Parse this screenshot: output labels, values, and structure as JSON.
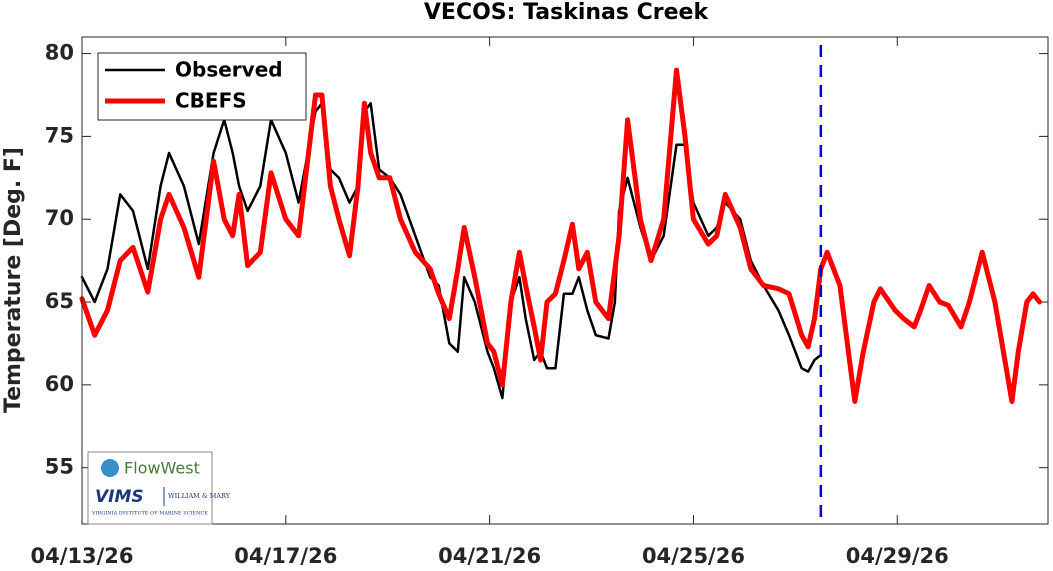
{
  "chart_data": {
    "type": "line",
    "title": "VECOS: Taskinas Creek",
    "y_label": "Temperature [Deg. F]",
    "x": [
      "2026-04-13T00:00",
      "2026-04-13T06:00",
      "2026-04-13T12:00",
      "2026-04-13T18:00",
      "2026-04-14T00:00",
      "2026-04-14T07:00",
      "2026-04-14T13:00",
      "2026-04-14T17:00",
      "2026-04-15T00:00",
      "2026-04-15T07:00",
      "2026-04-15T14:00",
      "2026-04-15T19:00",
      "2026-04-15T23:00",
      "2026-04-16T02:00",
      "2026-04-16T06:00",
      "2026-04-16T12:00",
      "2026-04-16T17:00",
      "2026-04-17T00:00",
      "2026-04-17T06:00",
      "2026-04-17T14:00",
      "2026-04-17T17:00",
      "2026-04-17T21:00",
      "2026-04-18T01:00",
      "2026-04-18T06:00",
      "2026-04-18T10:00",
      "2026-04-18T13:00",
      "2026-04-18T16:00",
      "2026-04-18T20:00",
      "2026-04-19T01:00",
      "2026-04-19T06:00",
      "2026-04-19T13:00",
      "2026-04-19T20:00",
      "2026-04-20T00:00",
      "2026-04-20T05:00",
      "2026-04-20T09:00",
      "2026-04-20T12:00",
      "2026-04-20T17:00",
      "2026-04-20T23:00",
      "2026-04-21T02:00",
      "2026-04-21T06:00",
      "2026-04-21T10:00",
      "2026-04-21T14:00",
      "2026-04-21T17:00",
      "2026-04-21T21:00",
      "2026-04-22T00:00",
      "2026-04-22T03:00",
      "2026-04-22T07:00",
      "2026-04-22T11:00",
      "2026-04-22T15:00",
      "2026-04-22T18:00",
      "2026-04-22T22:00",
      "2026-04-23T02:00",
      "2026-04-23T08:00",
      "2026-04-23T11:00",
      "2026-04-23T13:00",
      "2026-04-23T17:00",
      "2026-04-23T23:00",
      "2026-04-24T04:00",
      "2026-04-24T10:00",
      "2026-04-24T16:00",
      "2026-04-24T20:00",
      "2026-04-25T00:00",
      "2026-04-25T07:00",
      "2026-04-25T11:00",
      "2026-04-25T15:00",
      "2026-04-25T22:00",
      "2026-04-26T03:00",
      "2026-04-26T09:00",
      "2026-04-26T16:00",
      "2026-04-26T21:00",
      "2026-04-27T03:00",
      "2026-04-27T06:00",
      "2026-04-27T09:00",
      "2026-04-27T12:00",
      "2026-04-27T15:00",
      "2026-04-27T21:00",
      "2026-04-28T04:00",
      "2026-04-28T08:00",
      "2026-04-28T13:00",
      "2026-04-28T16:00",
      "2026-04-28T23:00",
      "2026-04-29T03:00",
      "2026-04-29T08:00",
      "2026-04-29T11:00",
      "2026-04-29T15:00",
      "2026-04-29T20:00",
      "2026-04-30T00:00",
      "2026-04-30T06:00",
      "2026-04-30T10:00",
      "2026-04-30T16:00",
      "2026-04-30T22:00",
      "2026-05-01T02:00",
      "2026-05-01T06:00",
      "2026-05-01T09:00",
      "2026-05-01T13:00",
      "2026-05-01T16:00",
      "2026-05-01T19:00"
    ],
    "series": [
      {
        "name": "Observed",
        "color": "#000000",
        "width": 2.5,
        "values": [
          66.5,
          65,
          67,
          71.5,
          70.5,
          67,
          72,
          74,
          72,
          68.5,
          74,
          76,
          74,
          72,
          70.5,
          72,
          76,
          74,
          71,
          76.5,
          77,
          73,
          72.5,
          71,
          72,
          76.5,
          77,
          73,
          72.5,
          71.5,
          69,
          66.5,
          66,
          62.5,
          62,
          66.5,
          65,
          62,
          61,
          59.2,
          65,
          66.5,
          64,
          61.5,
          62,
          61,
          61,
          65.5,
          65.5,
          66.5,
          64.5,
          63,
          62.8,
          65,
          70.5,
          72.5,
          69.5,
          67.5,
          69,
          74.5,
          74.5,
          71,
          69,
          69.5,
          71,
          70,
          67.5,
          66,
          64.5,
          63,
          61,
          60.8,
          61.5,
          61.8,
          null,
          null,
          null,
          null,
          null,
          null,
          null,
          null,
          null,
          null,
          null,
          null,
          null,
          null,
          null,
          null,
          null,
          null,
          null,
          null,
          null,
          null,
          null
        ]
      },
      {
        "name": "CBEFS",
        "color": "#ff0000",
        "width": 5,
        "values": [
          65.2,
          63,
          64.5,
          67.5,
          68.3,
          65.6,
          70,
          71.5,
          69.5,
          66.5,
          73.5,
          70,
          69,
          71.5,
          67.2,
          68,
          72.8,
          70,
          69,
          77.5,
          77.5,
          72,
          70,
          67.8,
          72,
          77,
          74,
          72.5,
          72.5,
          70,
          68,
          67,
          65.5,
          64,
          67,
          69.5,
          66.5,
          62.5,
          62,
          60,
          65,
          68,
          66,
          63.5,
          61.5,
          65,
          65.5,
          67.5,
          69.7,
          67,
          68,
          65,
          64,
          67,
          69,
          76,
          70,
          67.5,
          70,
          79,
          75,
          70,
          68.5,
          69,
          71.5,
          69.5,
          67,
          66,
          65.8,
          65.5,
          63,
          62.3,
          64,
          67,
          68,
          66,
          59,
          62,
          65,
          65.8,
          64.5,
          64,
          63.5,
          64.5,
          66,
          65,
          64.8,
          63.5,
          65,
          68,
          65,
          62,
          59,
          62,
          65,
          65.5,
          65
        ]
      }
    ],
    "xlim": [
      "2026-04-13T00:00",
      "2026-05-01T23:00"
    ],
    "xticks": [
      {
        "value": "2026-04-13T00:00",
        "label": "04/13/26"
      },
      {
        "value": "2026-04-17T00:00",
        "label": "04/17/26"
      },
      {
        "value": "2026-04-21T00:00",
        "label": "04/21/26"
      },
      {
        "value": "2026-04-25T00:00",
        "label": "04/25/26"
      },
      {
        "value": "2026-04-29T00:00",
        "label": "04/29/26"
      }
    ],
    "ylim": [
      51.6,
      81
    ],
    "yticks": [
      55,
      60,
      65,
      70,
      75,
      80
    ],
    "grid": false,
    "legend": "northwest",
    "forecast_start": {
      "x": "2026-04-27T12:00",
      "color": "#0000dd"
    },
    "logo": {
      "top": "FlowWest",
      "left": "VIMS",
      "right": "WILLIAM & MARY",
      "bottom": "VIRGINIA INSTITUTE OF MARINE SCIENCE"
    }
  }
}
